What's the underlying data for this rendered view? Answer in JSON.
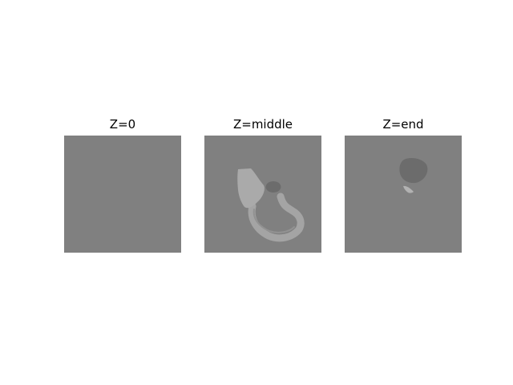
{
  "panels": [
    {
      "title": "Z=0"
    },
    {
      "title": "Z=middle"
    },
    {
      "title": "Z=end"
    }
  ],
  "colors": {
    "background": "#ffffff",
    "slice_background": "#808080",
    "bright_region": "#aaaaaa",
    "tube_region": "#a4a4a4",
    "dark_region": "#6c6c6c",
    "small_bright_region": "#b2b2b2"
  }
}
